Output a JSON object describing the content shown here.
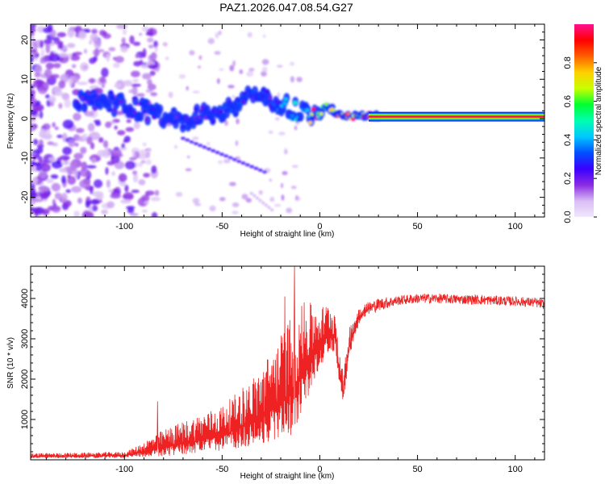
{
  "title": "PAZ1.2026.047.08.54.G27",
  "chart_data": [
    {
      "type": "heatmap",
      "name": "spectrogram",
      "xlabel": "Height of straight line (km)",
      "ylabel": "Frequency (Hz)",
      "xlim": [
        -148,
        115
      ],
      "ylim": [
        -25,
        24
      ],
      "xticks": [
        -100,
        -50,
        0,
        50,
        100
      ],
      "yticks": [
        -20,
        -10,
        0,
        10,
        20
      ],
      "xtick_labels": [
        "-100",
        "-50",
        "0",
        "50",
        "100"
      ],
      "ytick_labels": [
        "-20",
        "-10",
        "0",
        "10",
        "20"
      ],
      "colorbar": {
        "label": "Normalized spectral amplitude",
        "range": [
          0,
          1
        ],
        "ticks": [
          0.0,
          0.2,
          0.4,
          0.6,
          0.8
        ],
        "tick_labels": [
          "0.0",
          "0.2",
          "0.4",
          "0.6",
          "0.8"
        ],
        "colors": [
          "#f0e8fc",
          "#d9bcf5",
          "#8a2be2",
          "#3a00ff",
          "#0050ff",
          "#00c8ff",
          "#00ffb0",
          "#00ff30",
          "#c8ff00",
          "#ffd000",
          "#ff6000",
          "#ff0000",
          "#ff1090"
        ]
      },
      "ridge": {
        "x": [
          -120,
          -110,
          -100,
          -90,
          -80,
          -70,
          -60,
          -50,
          -40,
          -35,
          -30,
          -25,
          -20,
          -15,
          -10,
          -5,
          -2,
          0,
          4,
          10,
          20,
          30,
          50,
          80,
          110,
          115
        ],
        "frequency": [
          4,
          4.5,
          3,
          2,
          0,
          -1,
          1,
          2,
          4,
          6,
          5,
          4,
          4,
          3,
          2,
          1,
          0,
          1,
          3,
          1,
          1,
          0.5,
          0.5,
          0.5,
          0.5,
          0.7
        ],
        "amplitude": [
          0.28,
          0.3,
          0.3,
          0.3,
          0.28,
          0.3,
          0.3,
          0.3,
          0.32,
          0.34,
          0.32,
          0.32,
          0.4,
          0.45,
          0.5,
          0.62,
          0.95,
          0.7,
          0.6,
          0.9,
          0.95,
          0.95,
          0.95,
          0.95,
          0.95,
          0.8
        ]
      }
    },
    {
      "type": "line",
      "name": "snr",
      "xlabel": "Height of straight line (km)",
      "ylabel": "SNR (10 * v/v)",
      "xlim": [
        -148,
        115
      ],
      "ylim": [
        0,
        4800
      ],
      "xticks": [
        -100,
        -50,
        0,
        50,
        100
      ],
      "yticks": [
        1000,
        2000,
        3000,
        4000
      ],
      "xtick_labels": [
        "-100",
        "-50",
        "0",
        "50",
        "100"
      ],
      "ytick_labels": [
        "1000",
        "2000",
        "3000",
        "4000"
      ],
      "color": "#ee2222",
      "envelope": {
        "x": [
          -148,
          -120,
          -100,
          -95,
          -90,
          -85,
          -80,
          -70,
          -60,
          -50,
          -45,
          -40,
          -35,
          -30,
          -25,
          -20,
          -15,
          -12,
          -10,
          -5,
          0,
          5,
          8,
          10,
          12,
          15,
          20,
          25,
          30,
          40,
          50,
          60,
          70,
          80,
          90,
          100,
          110,
          115
        ],
        "base": [
          80,
          90,
          100,
          150,
          200,
          250,
          300,
          400,
          500,
          600,
          700,
          800,
          900,
          1000,
          1200,
          1400,
          1600,
          1800,
          2000,
          2400,
          2800,
          3100,
          3000,
          2200,
          1600,
          2800,
          3500,
          3750,
          3850,
          3950,
          4000,
          4000,
          3980,
          3970,
          3950,
          3930,
          3900,
          3850
        ],
        "spread": [
          80,
          90,
          100,
          150,
          250,
          350,
          450,
          550,
          650,
          750,
          850,
          1000,
          1100,
          1300,
          1500,
          1700,
          2000,
          2100,
          1800,
          1500,
          1000,
          800,
          700,
          600,
          500,
          500,
          300,
          200,
          200,
          150,
          150,
          150,
          150,
          150,
          150,
          150,
          150,
          150
        ]
      },
      "peaks": [
        {
          "x": -13,
          "y": 4800
        },
        {
          "x": -18,
          "y": 4050
        },
        {
          "x": -8,
          "y": 3900
        },
        {
          "x": -83,
          "y": 1450
        }
      ]
    }
  ]
}
